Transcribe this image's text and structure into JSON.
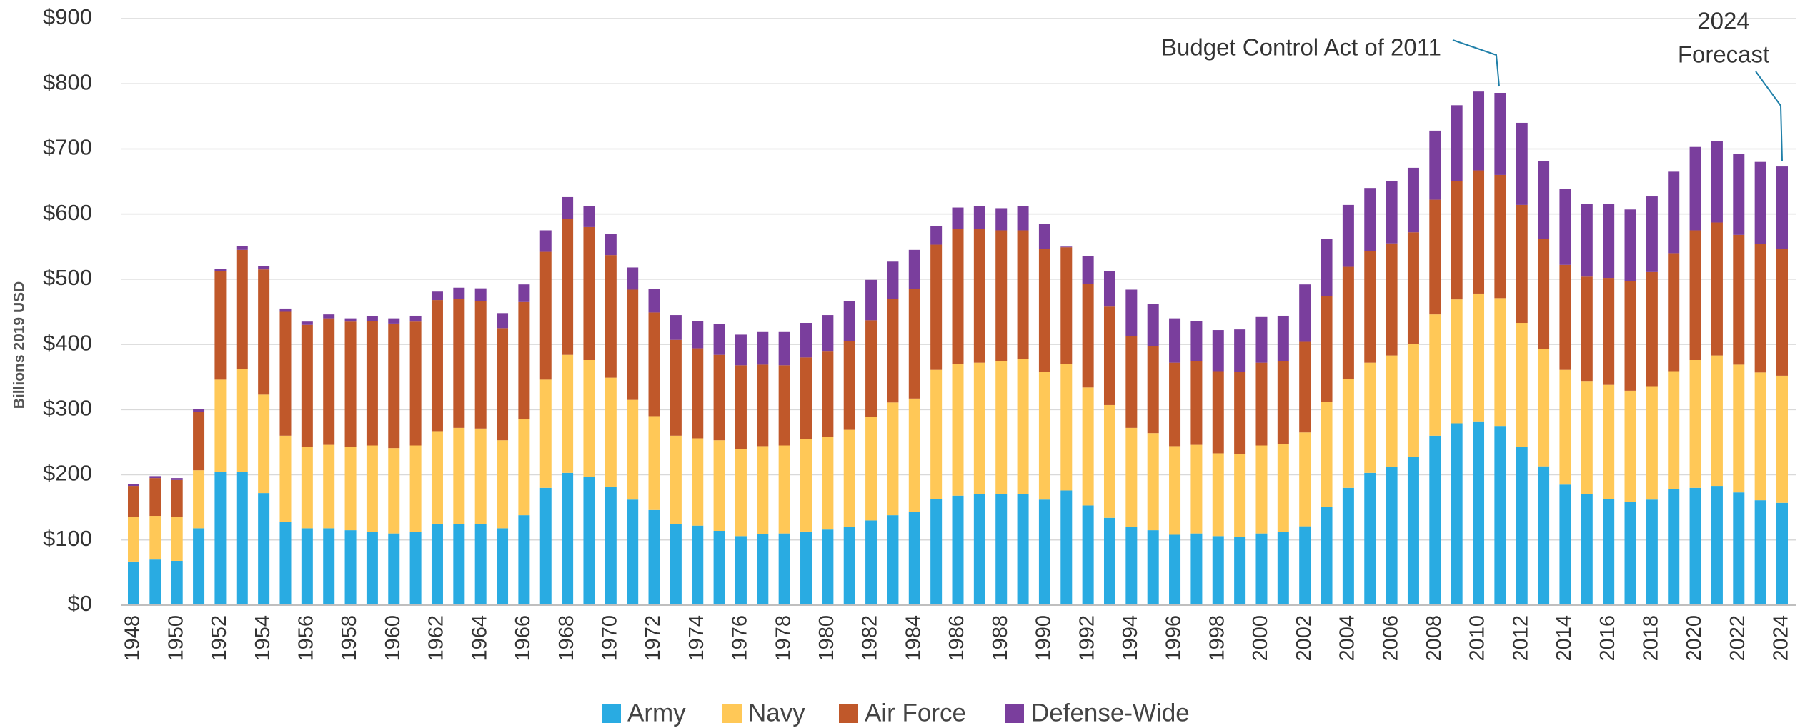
{
  "chart_data": {
    "type": "stacked_bar",
    "y_axis_label": "Billions 2019 USD",
    "categories": [
      "1948",
      null,
      "1950",
      null,
      "1952",
      null,
      "1954",
      null,
      "1956",
      null,
      "1958",
      null,
      "1960",
      null,
      "1962",
      null,
      "1964",
      null,
      "1966",
      null,
      "1968",
      null,
      "1970",
      null,
      "1972",
      null,
      "1974",
      null,
      "1976",
      null,
      "1978",
      null,
      "1980",
      null,
      "1982",
      null,
      "1984",
      null,
      "1986",
      null,
      "1988",
      null,
      "1990",
      null,
      "1992",
      null,
      "1994",
      null,
      "1996",
      null,
      "1998",
      null,
      "2000",
      null,
      "2002",
      null,
      "2004",
      null,
      "2006",
      null,
      "2008",
      null,
      "2010",
      null,
      "2012",
      null,
      "2014",
      null,
      "2016",
      null,
      "2018",
      null,
      "2020",
      null,
      "2022",
      null,
      "2024"
    ],
    "series": [
      {
        "name": "Army",
        "color": "#29abe2",
        "values": [
          67,
          70,
          68,
          118,
          205,
          205,
          172,
          128,
          118,
          118,
          115,
          112,
          110,
          112,
          125,
          124,
          124,
          118,
          138,
          180,
          203,
          197,
          182,
          162,
          146,
          124,
          122,
          114,
          106,
          109,
          110,
          113,
          116,
          120,
          130,
          138,
          143,
          163,
          168,
          170,
          171,
          170,
          162,
          176,
          153,
          134,
          120,
          115,
          108,
          110,
          106,
          105,
          110,
          112,
          121,
          151,
          180,
          203,
          212,
          227,
          260,
          279,
          282,
          275,
          243,
          213,
          185,
          170,
          163,
          158,
          162,
          178,
          180,
          183,
          173,
          161,
          157
        ]
      },
      {
        "name": "Navy",
        "color": "#ffc857",
        "values": [
          68,
          67,
          67,
          89,
          141,
          157,
          151,
          132,
          125,
          128,
          128,
          133,
          131,
          133,
          142,
          148,
          147,
          135,
          147,
          166,
          181,
          179,
          167,
          153,
          144,
          136,
          134,
          139,
          134,
          135,
          135,
          142,
          142,
          149,
          159,
          173,
          174,
          198,
          202,
          202,
          203,
          208,
          196,
          194,
          181,
          173,
          152,
          149,
          136,
          136,
          127,
          127,
          135,
          135,
          144,
          161,
          167,
          169,
          171,
          174,
          186,
          190,
          196,
          196,
          190,
          180,
          176,
          174,
          175,
          171,
          174,
          181,
          196,
          200,
          196,
          196,
          195
        ]
      },
      {
        "name": "Air Force",
        "color": "#c0582a",
        "values": [
          48,
          58,
          57,
          90,
          166,
          183,
          192,
          190,
          187,
          194,
          192,
          191,
          191,
          190,
          201,
          198,
          195,
          172,
          180,
          196,
          209,
          204,
          188,
          169,
          159,
          147,
          138,
          131,
          128,
          125,
          123,
          125,
          131,
          136,
          148,
          159,
          168,
          192,
          207,
          205,
          201,
          197,
          189,
          179,
          159,
          151,
          141,
          133,
          128,
          128,
          126,
          126,
          127,
          127,
          139,
          162,
          172,
          171,
          172,
          171,
          176,
          182,
          189,
          189,
          181,
          169,
          161,
          160,
          164,
          168,
          175,
          181,
          199,
          204,
          199,
          197,
          194
        ]
      },
      {
        "name": "Defense-Wide",
        "color": "#7a3e9d",
        "values": [
          3,
          3,
          3,
          4,
          4,
          6,
          5,
          5,
          5,
          6,
          5,
          7,
          8,
          9,
          13,
          17,
          20,
          23,
          27,
          33,
          33,
          32,
          32,
          34,
          36,
          38,
          42,
          47,
          47,
          50,
          51,
          53,
          56,
          61,
          62,
          57,
          60,
          28,
          33,
          35,
          34,
          37,
          38,
          1,
          43,
          55,
          71,
          65,
          68,
          62,
          63,
          65,
          70,
          70,
          88,
          88,
          95,
          97,
          96,
          99,
          106,
          116,
          121,
          126,
          126,
          119,
          116,
          112,
          113,
          110,
          116,
          125,
          128,
          125,
          124,
          126,
          127
        ]
      }
    ],
    "ylim": [
      0,
      900
    ],
    "yticks": [
      {
        "value": 0,
        "label": "$0"
      },
      {
        "value": 100,
        "label": "$100"
      },
      {
        "value": 200,
        "label": "$200"
      },
      {
        "value": 300,
        "label": "$300"
      },
      {
        "value": 400,
        "label": "$400"
      },
      {
        "value": 500,
        "label": "$500"
      },
      {
        "value": 600,
        "label": "$600"
      },
      {
        "value": 700,
        "label": "$700"
      },
      {
        "value": 800,
        "label": "$800"
      },
      {
        "value": 900,
        "label": "$900"
      }
    ],
    "grid": true,
    "legend": "bottom",
    "annotations": [
      {
        "lines": [
          "Budget Control Act of 2011"
        ]
      },
      {
        "lines": [
          "2024",
          "Forecast"
        ]
      }
    ]
  }
}
